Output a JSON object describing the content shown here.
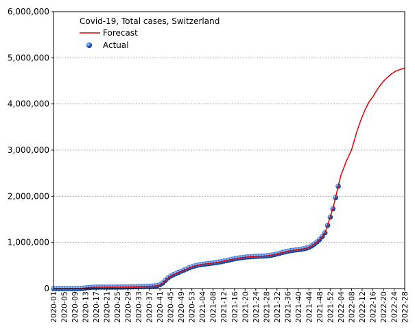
{
  "chart_data": {
    "type": "line",
    "title": "Covid-19, Total cases, Switzerland",
    "categories": [
      "2020-01",
      null,
      null,
      null,
      "2020-05",
      null,
      null,
      null,
      "2020-09",
      null,
      null,
      null,
      "2020-13",
      null,
      null,
      null,
      "2020-17",
      null,
      null,
      null,
      "2020-21",
      null,
      null,
      null,
      "2020-25",
      null,
      null,
      null,
      "2020-29",
      null,
      null,
      null,
      "2020-33",
      null,
      null,
      null,
      "2020-37",
      null,
      null,
      null,
      "2020-41",
      null,
      null,
      null,
      "2020-45",
      null,
      null,
      null,
      "2020-49",
      null,
      null,
      null,
      "2020-53",
      null,
      null,
      null,
      "2021-04",
      null,
      null,
      null,
      "2021-08",
      null,
      null,
      null,
      "2021-12",
      null,
      null,
      null,
      "2021-16",
      null,
      null,
      null,
      "2021-20",
      null,
      null,
      null,
      "2021-24",
      null,
      null,
      null,
      "2021-28",
      null,
      null,
      null,
      "2021-32",
      null,
      null,
      null,
      "2021-36",
      null,
      null,
      null,
      "2021-40",
      null,
      null,
      null,
      "2021-44",
      null,
      null,
      null,
      "2021-48",
      null,
      null,
      null,
      "2021-52",
      null,
      null,
      null,
      "2022-04",
      null,
      null,
      null,
      "2022-08",
      null,
      null,
      null,
      "2022-12",
      null,
      null,
      null,
      "2022-16",
      null,
      null,
      null,
      "2022-20",
      null,
      null,
      null,
      "2022-24",
      null,
      null,
      null,
      "2022-28"
    ],
    "series": [
      {
        "name": "Forecast",
        "color": "#e00000",
        "style": "line",
        "values": [
          0,
          0,
          0,
          0,
          0,
          0,
          0,
          0,
          0,
          0,
          1000,
          6000,
          14000,
          21000,
          25000,
          28000,
          29000,
          30000,
          30000,
          31000,
          31000,
          31000,
          31000,
          31000,
          32000,
          32000,
          33000,
          34000,
          35000,
          36000,
          38000,
          40000,
          42000,
          44000,
          46000,
          48000,
          51000,
          54000,
          58000,
          65000,
          84000,
          120000,
          175000,
          230000,
          270000,
          300000,
          325000,
          350000,
          375000,
          400000,
          425000,
          450000,
          470000,
          490000,
          505000,
          515000,
          525000,
          532000,
          540000,
          547000,
          555000,
          563000,
          572000,
          582000,
          595000,
          607000,
          620000,
          632000,
          645000,
          655000,
          665000,
          672000,
          680000,
          686000,
          690000,
          694000,
          697000,
          700000,
          702000,
          705000,
          710000,
          716000,
          725000,
          737000,
          750000,
          765000,
          780000,
          795000,
          808000,
          820000,
          828000,
          836000,
          843000,
          852000,
          862000,
          875000,
          895000,
          925000,
          965000,
          1010000,
          1065000,
          1130000,
          1210000,
          1370000,
          1550000,
          1730000,
          1970000,
          2220000,
          2450000,
          2600000,
          2750000,
          2880000,
          3000000,
          3200000,
          3400000,
          3570000,
          3720000,
          3860000,
          3980000,
          4080000,
          4150000,
          4250000,
          4340000,
          4420000,
          4490000,
          4550000,
          4600000,
          4650000,
          4690000,
          4720000,
          4740000,
          4760000,
          4780000
        ]
      },
      {
        "name": "Actual",
        "color": "#1a5fd0",
        "style": "marker",
        "values": [
          0,
          0,
          0,
          0,
          0,
          0,
          0,
          0,
          0,
          0,
          1000,
          6000,
          14000,
          21000,
          25000,
          28000,
          29000,
          30000,
          30000,
          31000,
          31000,
          31000,
          31000,
          31000,
          32000,
          32000,
          33000,
          34000,
          35000,
          36000,
          38000,
          40000,
          42000,
          44000,
          46000,
          48000,
          51000,
          54000,
          58000,
          65000,
          84000,
          120000,
          175000,
          230000,
          270000,
          300000,
          325000,
          350000,
          375000,
          400000,
          425000,
          450000,
          470000,
          490000,
          505000,
          515000,
          525000,
          532000,
          540000,
          547000,
          555000,
          563000,
          572000,
          582000,
          595000,
          607000,
          620000,
          632000,
          645000,
          655000,
          665000,
          672000,
          680000,
          686000,
          690000,
          694000,
          697000,
          700000,
          702000,
          705000,
          710000,
          716000,
          725000,
          737000,
          750000,
          765000,
          780000,
          795000,
          808000,
          820000,
          828000,
          836000,
          843000,
          852000,
          862000,
          875000,
          895000,
          925000,
          965000,
          1010000,
          1065000,
          1130000,
          1210000,
          1370000,
          1550000,
          1730000,
          1970000,
          2220000,
          null,
          null,
          null,
          null,
          null,
          null,
          null,
          null,
          null,
          null,
          null,
          null,
          null,
          null,
          null,
          null,
          null,
          null,
          null,
          null,
          null,
          null,
          null,
          null,
          null
        ]
      }
    ],
    "ylim": [
      0,
      6000000
    ],
    "yticks": [
      0,
      {
        "value": 1000000,
        "label": "1,000,000"
      },
      {
        "value": 2000000,
        "label": "2,000,000"
      },
      {
        "value": 3000000,
        "label": "3,000,000"
      },
      {
        "value": 4000000,
        "label": "4,000,000"
      },
      {
        "value": 5000000,
        "label": "5,000,000"
      },
      {
        "value": 6000000,
        "label": "6,000,000"
      }
    ],
    "grid": true
  }
}
